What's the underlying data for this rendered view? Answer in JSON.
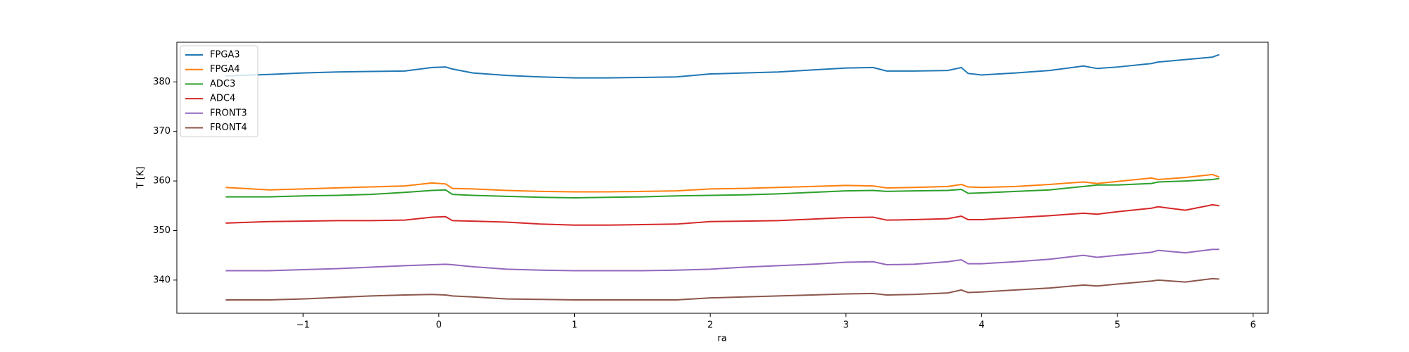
{
  "chart_data": {
    "type": "line",
    "xlabel": "ra",
    "ylabel": "T [K]",
    "x": [
      -1.57,
      -1.25,
      -1.0,
      -0.75,
      -0.5,
      -0.25,
      -0.05,
      0.05,
      0.1,
      0.25,
      0.5,
      0.75,
      1.0,
      1.25,
      1.5,
      1.75,
      2.0,
      2.25,
      2.5,
      2.75,
      3.0,
      3.2,
      3.3,
      3.5,
      3.75,
      3.85,
      3.9,
      4.0,
      4.25,
      4.5,
      4.75,
      4.85,
      5.0,
      5.25,
      5.3,
      5.5,
      5.7,
      5.75
    ],
    "series": [
      {
        "name": "FPGA3",
        "color": "#1f77b4",
        "values": [
          381.2,
          381.5,
          381.8,
          382.0,
          382.1,
          382.2,
          382.9,
          383.0,
          382.6,
          381.8,
          381.3,
          381.0,
          380.8,
          380.8,
          380.9,
          381.0,
          381.6,
          381.8,
          382.0,
          382.4,
          382.8,
          382.9,
          382.2,
          382.2,
          382.3,
          382.9,
          381.7,
          381.4,
          381.8,
          382.3,
          383.2,
          382.7,
          383.0,
          383.7,
          384.0,
          384.5,
          385.0,
          385.5
        ]
      },
      {
        "name": "FPGA4",
        "color": "#ff7f0e",
        "values": [
          358.7,
          358.2,
          358.4,
          358.6,
          358.8,
          359.0,
          359.6,
          359.4,
          358.5,
          358.4,
          358.1,
          357.9,
          357.8,
          357.8,
          357.9,
          358.0,
          358.4,
          358.5,
          358.7,
          358.9,
          359.1,
          359.0,
          358.6,
          358.7,
          358.9,
          359.3,
          358.8,
          358.7,
          358.9,
          359.3,
          359.8,
          359.5,
          359.9,
          360.6,
          360.3,
          360.7,
          361.3,
          360.8
        ]
      },
      {
        "name": "ADC3",
        "color": "#2ca02c",
        "values": [
          356.8,
          356.8,
          357.0,
          357.1,
          357.3,
          357.7,
          358.1,
          358.2,
          357.3,
          357.1,
          356.9,
          356.7,
          356.6,
          356.7,
          356.8,
          357.0,
          357.1,
          357.2,
          357.4,
          357.7,
          358.0,
          358.1,
          357.9,
          358.0,
          358.1,
          358.3,
          357.5,
          357.6,
          357.9,
          358.2,
          358.9,
          359.2,
          359.2,
          359.5,
          359.8,
          360.0,
          360.3,
          360.5
        ]
      },
      {
        "name": "ADC4",
        "color": "#d62728",
        "values": [
          351.5,
          351.8,
          351.9,
          352.0,
          352.0,
          352.1,
          352.7,
          352.8,
          352.0,
          351.9,
          351.7,
          351.3,
          351.1,
          351.1,
          351.2,
          351.3,
          351.8,
          351.9,
          352.0,
          352.3,
          352.6,
          352.7,
          352.1,
          352.2,
          352.4,
          352.9,
          352.2,
          352.2,
          352.6,
          353.0,
          353.5,
          353.3,
          353.8,
          354.5,
          354.8,
          354.1,
          355.2,
          355.0
        ]
      },
      {
        "name": "FRONT3",
        "color": "#9467bd",
        "values": [
          341.9,
          341.9,
          342.1,
          342.3,
          342.6,
          342.9,
          343.1,
          343.2,
          343.1,
          342.7,
          342.2,
          342.0,
          341.9,
          341.9,
          341.9,
          342.0,
          342.2,
          342.6,
          342.9,
          343.2,
          343.6,
          343.7,
          343.1,
          343.2,
          343.7,
          344.1,
          343.3,
          343.3,
          343.7,
          344.2,
          345.0,
          344.6,
          345.0,
          345.6,
          346.0,
          345.5,
          346.2,
          346.2
        ]
      },
      {
        "name": "FRONT4",
        "color": "#8c564b",
        "values": [
          336.0,
          336.0,
          336.2,
          336.5,
          336.8,
          337.0,
          337.1,
          337.0,
          336.8,
          336.6,
          336.2,
          336.1,
          336.0,
          336.0,
          336.0,
          336.0,
          336.4,
          336.6,
          336.8,
          337.0,
          337.2,
          337.3,
          337.0,
          337.1,
          337.4,
          338.0,
          337.5,
          337.6,
          338.0,
          338.4,
          339.0,
          338.8,
          339.2,
          339.8,
          340.0,
          339.6,
          340.3,
          340.2
        ]
      }
    ],
    "xlim": [
      -1.93,
      6.11
    ],
    "xticks": [
      {
        "value": -1,
        "label": "−1"
      },
      0,
      1,
      2,
      3,
      4,
      5,
      6
    ],
    "ylim": [
      333.3,
      388
    ],
    "yticks": [
      340,
      350,
      360,
      370,
      380
    ],
    "legend": "upper left",
    "grid": false
  }
}
